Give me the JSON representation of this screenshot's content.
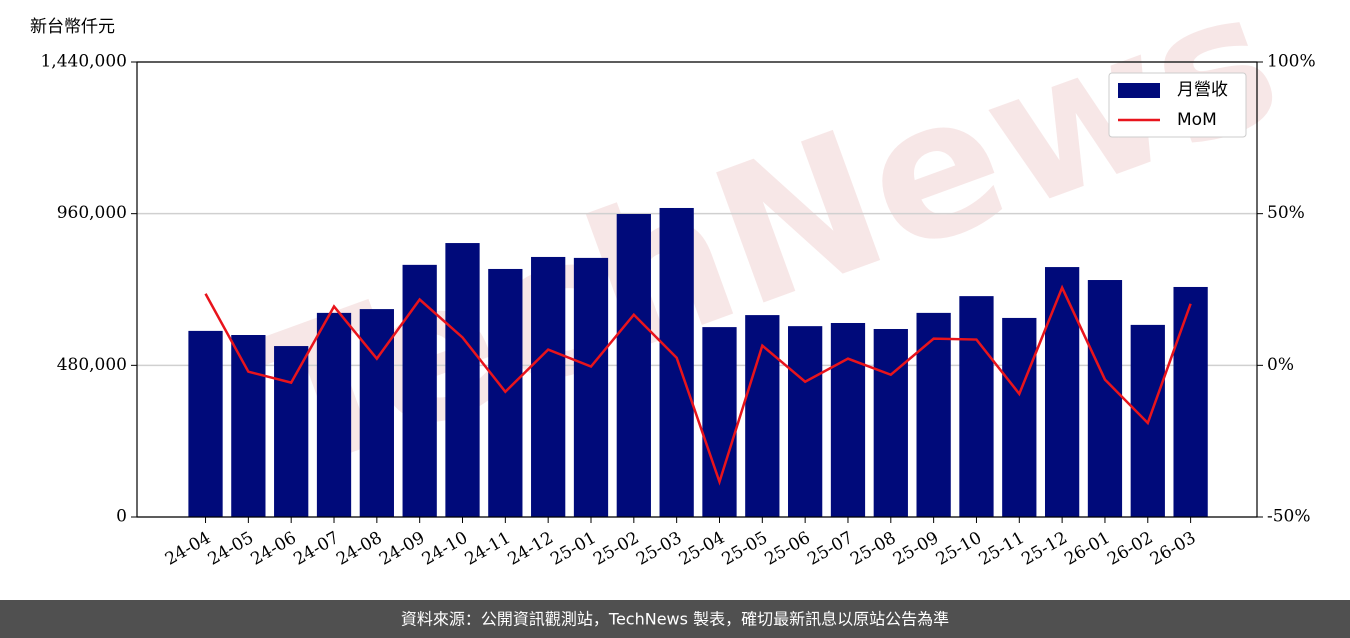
{
  "chart_data": {
    "type": "bar_line",
    "y_label": "新台幣仟元",
    "watermark": "TechNews",
    "source": "資料來源：公開資訊觀測站，TechNews 製表，確切最新訊息以原站公告為準",
    "categories": [
      "24-04",
      "24-05",
      "24-06",
      "24-07",
      "24-08",
      "24-09",
      "24-10",
      "24-11",
      "24-12",
      "25-01",
      "25-02",
      "25-03",
      "25-04",
      "25-05",
      "25-06",
      "25-07",
      "25-08",
      "25-09",
      "25-10",
      "25-11",
      "25-12",
      "26-01",
      "26-02",
      "26-03"
    ],
    "series": [
      {
        "name": "月營收",
        "type": "bar",
        "color": "#000a7a",
        "values": [
          589000,
          576000,
          541000,
          646000,
          658000,
          798000,
          867000,
          785000,
          823000,
          820000,
          959000,
          978000,
          601000,
          639000,
          604000,
          614000,
          595000,
          646000,
          699000,
          630000,
          791000,
          750000,
          608000,
          728000
        ]
      },
      {
        "name": "MoM",
        "type": "line",
        "axis": "y2",
        "color": "#e8141c",
        "values": [
          23.6,
          -2.1,
          -5.7,
          19.4,
          2.2,
          21.7,
          9.2,
          -8.7,
          5.2,
          -0.4,
          16.7,
          2.5,
          -38.4,
          6.5,
          -5.4,
          2.2,
          -3.1,
          8.8,
          8.5,
          -9.4,
          25.6,
          -4.7,
          -19.0,
          20.3
        ]
      }
    ],
    "ylim": [
      0,
      1440000
    ],
    "yticks": [
      0,
      {
        "value": 480000,
        "label": "480,000"
      },
      {
        "value": 960000,
        "label": "960,000"
      },
      {
        "value": 1440000,
        "label": "1,440,000"
      }
    ],
    "y2lim": [
      -50,
      100
    ],
    "y2ticks": [
      {
        "value": -50,
        "label": "-50%"
      },
      {
        "value": 0,
        "label": "0%"
      },
      {
        "value": 50,
        "label": "50%"
      },
      {
        "value": 100,
        "label": "100%"
      }
    ],
    "grid": true,
    "legend": "upper right"
  }
}
